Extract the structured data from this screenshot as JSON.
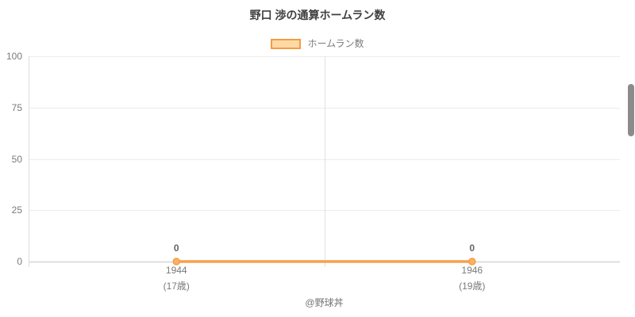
{
  "chart_data": {
    "type": "line",
    "title": "野口 渉の通算ホームラン数",
    "legend": {
      "label": "ホームラン数",
      "position": "top"
    },
    "categories": [
      {
        "year": "1944",
        "age": "(17歳)"
      },
      {
        "year": "1946",
        "age": "(19歳)"
      }
    ],
    "series": [
      {
        "name": "ホームラン数",
        "values": [
          0,
          0
        ]
      }
    ],
    "data_labels": [
      "0",
      "0"
    ],
    "xlabel": "",
    "ylabel": "",
    "ylim": [
      0,
      100
    ],
    "yticks": [
      0,
      25,
      50,
      75,
      100
    ],
    "grid": true,
    "colors": {
      "line": "#f8a04c",
      "marker_fill": "#fbb168",
      "marker_stroke": "#f79b42",
      "legend_fill": "#fcd9a6",
      "legend_border": "#f79b42",
      "grid_line": "#ececec",
      "boundary_line": "#e0e0e0",
      "axis_line": "#dedede",
      "tick_text": "#7a7a7a",
      "title_text": "#3f3f3f",
      "data_label_text": "#636363"
    }
  },
  "footer": {
    "credit": "@野球丼"
  }
}
